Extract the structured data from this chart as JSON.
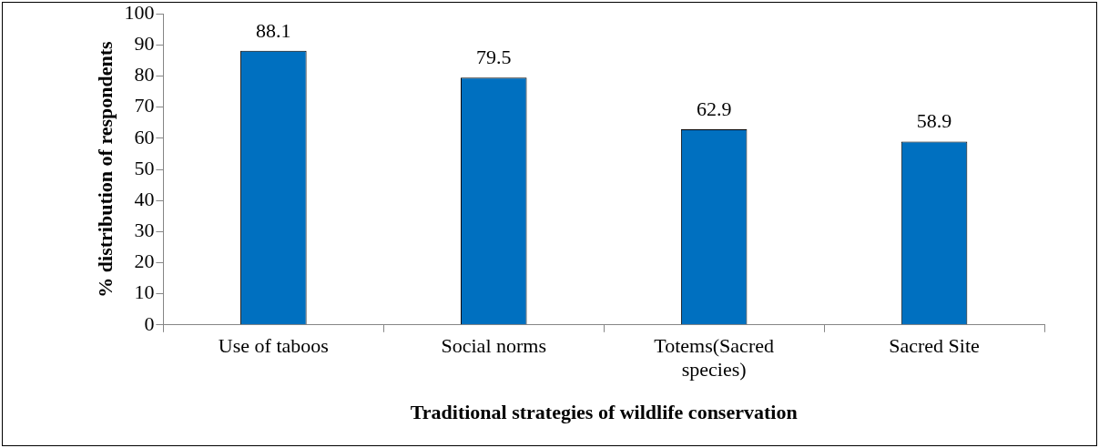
{
  "chart_data": {
    "type": "bar",
    "xlabel": "Traditional strategies of wildlife conservation",
    "ylabel": "% distribution of respondents",
    "categories": [
      "Use of taboos",
      "Social norms",
      "Totems(Sacred species)",
      "Sacred Site"
    ],
    "values": [
      88.1,
      79.5,
      62.9,
      58.9
    ],
    "color": "#0070c0",
    "ylim": [
      0,
      100
    ],
    "yticks": [
      0,
      10,
      20,
      30,
      40,
      50,
      60,
      70,
      80,
      90,
      100
    ],
    "grid": false,
    "legend": false,
    "data_labels": true
  }
}
